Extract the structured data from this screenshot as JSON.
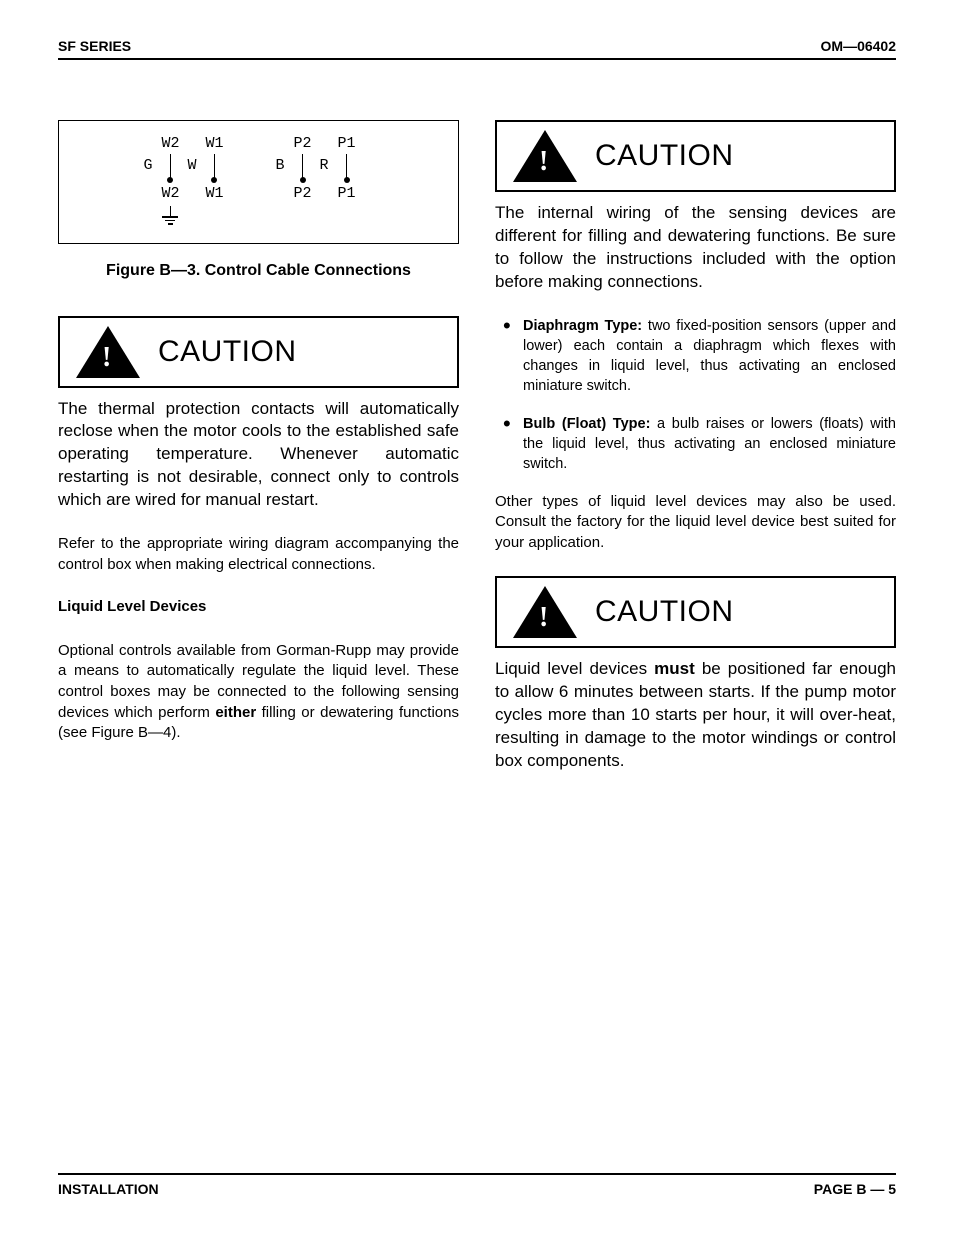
{
  "header": {
    "left": "SF SERIES",
    "right": "OM—06402"
  },
  "diagram": {
    "left_group": [
      {
        "top": "W2",
        "side": "G",
        "bottom": "W2",
        "ground": true
      },
      {
        "top": "W1",
        "side": "W",
        "bottom": "W1"
      }
    ],
    "right_group": [
      {
        "top": "P2",
        "side": "B",
        "bottom": "P2"
      },
      {
        "top": "P1",
        "side": "R",
        "bottom": "P1"
      }
    ]
  },
  "figure_caption": "Figure B—3. Control Cable Connections",
  "caution_label": "CAUTION",
  "left": {
    "caution_body": "The thermal protection contacts will automatically reclose when the motor cools to the established safe operating temperature. Whenever automatic restarting is not desirable, connect only to controls which are wired for manual restart.",
    "refer": "Refer to the appropriate wiring diagram accompanying the control box when making electrical connections.",
    "subhead": "Liquid Level Devices",
    "optional_pre": "Optional controls available from Gorman-Rupp may provide a means to automatically regulate the liquid level. These control boxes may be connected to the following sensing devices which perform ",
    "optional_bold": "either",
    "optional_post": " filling or dewatering functions (see Figure B—4)."
  },
  "right": {
    "caution1": "The internal wiring of the sensing devices are different for filling and dewatering functions. Be sure to follow the instructions included with the option before making connections.",
    "bullets": [
      {
        "title": "Diaphragm Type:",
        "text": " two fixed-position sensors (upper and lower) each contain a diaphragm which flexes with changes in liquid level, thus activating an enclosed miniature switch."
      },
      {
        "title": "Bulb (Float) Type:",
        "text": " a bulb raises or lowers (floats) with the liquid level, thus activating an enclosed miniature switch."
      }
    ],
    "other": "Other types of liquid level devices may also be used. Consult the factory for the liquid level device best suited for your application.",
    "caution2_pre": "Liquid level devices ",
    "caution2_bold": "must",
    "caution2_post": " be positioned far enough to allow 6 minutes between starts. If the pump motor cycles more than 10 starts per hour, it will over-heat, resulting in damage to the motor windings or control box components."
  },
  "footer": {
    "left": "INSTALLATION",
    "right": "PAGE B — 5"
  }
}
